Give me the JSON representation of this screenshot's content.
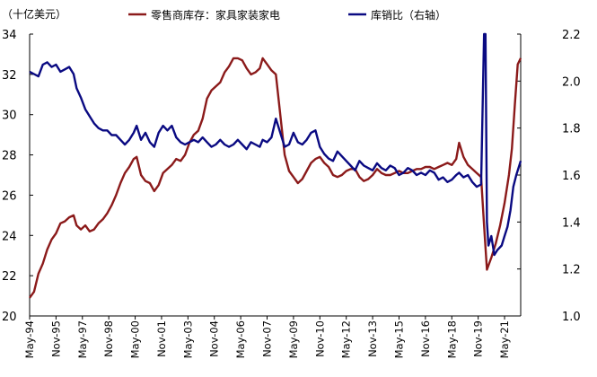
{
  "chart_data": {
    "type": "line",
    "unit_label": "（十亿美元）",
    "left_axis": {
      "ylim": [
        20,
        34
      ],
      "ticks": [
        20,
        22,
        24,
        26,
        28,
        30,
        32,
        34
      ]
    },
    "right_axis": {
      "ylim": [
        1.0,
        2.2
      ],
      "ticks": [
        "1.0",
        "1.2",
        "1.4",
        "1.6",
        "1.8",
        "2.0",
        "2.2"
      ]
    },
    "x_range": [
      "1994-05",
      "2022-04"
    ],
    "x_tick_labels": [
      "May-94",
      "Nov-95",
      "May-97",
      "Nov-98",
      "May-00",
      "Nov-01",
      "May-03",
      "Nov-04",
      "May-06",
      "Nov-07",
      "May-09",
      "Nov-10",
      "May-12",
      "Nov-13",
      "May-15",
      "Nov-16",
      "May-18",
      "Nov-19",
      "May-21"
    ],
    "legend_position": "top",
    "series": [
      {
        "name": "零售商库存：家具家装家电",
        "axis": "left",
        "color": "#8b1a1a",
        "points": [
          [
            "1994-05",
            20.9
          ],
          [
            "1994-08",
            21.2
          ],
          [
            "1994-11",
            22.1
          ],
          [
            "1995-02",
            22.6
          ],
          [
            "1995-05",
            23.3
          ],
          [
            "1995-08",
            23.8
          ],
          [
            "1995-11",
            24.1
          ],
          [
            "1996-02",
            24.6
          ],
          [
            "1996-05",
            24.7
          ],
          [
            "1996-08",
            24.9
          ],
          [
            "1996-11",
            25.0
          ],
          [
            "1997-01",
            24.5
          ],
          [
            "1997-04",
            24.3
          ],
          [
            "1997-07",
            24.5
          ],
          [
            "1997-10",
            24.2
          ],
          [
            "1998-01",
            24.3
          ],
          [
            "1998-04",
            24.6
          ],
          [
            "1998-07",
            24.8
          ],
          [
            "1998-10",
            25.1
          ],
          [
            "1999-01",
            25.5
          ],
          [
            "1999-04",
            26.0
          ],
          [
            "1999-07",
            26.6
          ],
          [
            "1999-10",
            27.1
          ],
          [
            "2000-01",
            27.4
          ],
          [
            "2000-04",
            27.8
          ],
          [
            "2000-06",
            27.9
          ],
          [
            "2000-09",
            27.0
          ],
          [
            "2000-12",
            26.7
          ],
          [
            "2001-03",
            26.6
          ],
          [
            "2001-06",
            26.2
          ],
          [
            "2001-09",
            26.5
          ],
          [
            "2001-12",
            27.1
          ],
          [
            "2002-03",
            27.3
          ],
          [
            "2002-06",
            27.5
          ],
          [
            "2002-09",
            27.8
          ],
          [
            "2002-12",
            27.7
          ],
          [
            "2003-03",
            28.0
          ],
          [
            "2003-06",
            28.6
          ],
          [
            "2003-09",
            29.0
          ],
          [
            "2003-12",
            29.2
          ],
          [
            "2004-03",
            29.8
          ],
          [
            "2004-06",
            30.8
          ],
          [
            "2004-09",
            31.2
          ],
          [
            "2004-12",
            31.4
          ],
          [
            "2005-03",
            31.6
          ],
          [
            "2005-06",
            32.1
          ],
          [
            "2005-09",
            32.4
          ],
          [
            "2005-12",
            32.8
          ],
          [
            "2006-03",
            32.8
          ],
          [
            "2006-06",
            32.7
          ],
          [
            "2006-09",
            32.3
          ],
          [
            "2006-12",
            32.0
          ],
          [
            "2007-03",
            32.1
          ],
          [
            "2007-06",
            32.3
          ],
          [
            "2007-08",
            32.8
          ],
          [
            "2007-11",
            32.5
          ],
          [
            "2008-02",
            32.2
          ],
          [
            "2008-05",
            32.0
          ],
          [
            "2008-08",
            30.0
          ],
          [
            "2008-11",
            28.0
          ],
          [
            "2009-02",
            27.2
          ],
          [
            "2009-05",
            26.9
          ],
          [
            "2009-08",
            26.6
          ],
          [
            "2009-11",
            26.8
          ],
          [
            "2010-02",
            27.2
          ],
          [
            "2010-05",
            27.6
          ],
          [
            "2010-08",
            27.8
          ],
          [
            "2010-11",
            27.9
          ],
          [
            "2011-02",
            27.6
          ],
          [
            "2011-05",
            27.4
          ],
          [
            "2011-08",
            27.0
          ],
          [
            "2011-11",
            26.9
          ],
          [
            "2012-02",
            27.0
          ],
          [
            "2012-05",
            27.2
          ],
          [
            "2012-08",
            27.3
          ],
          [
            "2012-11",
            27.3
          ],
          [
            "2013-02",
            26.9
          ],
          [
            "2013-05",
            26.7
          ],
          [
            "2013-08",
            26.8
          ],
          [
            "2013-11",
            27.0
          ],
          [
            "2014-02",
            27.3
          ],
          [
            "2014-05",
            27.1
          ],
          [
            "2014-08",
            27.0
          ],
          [
            "2014-11",
            27.0
          ],
          [
            "2015-02",
            27.1
          ],
          [
            "2015-05",
            27.2
          ],
          [
            "2015-08",
            27.1
          ],
          [
            "2015-11",
            27.1
          ],
          [
            "2016-02",
            27.2
          ],
          [
            "2016-05",
            27.3
          ],
          [
            "2016-08",
            27.3
          ],
          [
            "2016-11",
            27.4
          ],
          [
            "2017-02",
            27.4
          ],
          [
            "2017-05",
            27.3
          ],
          [
            "2017-08",
            27.4
          ],
          [
            "2017-11",
            27.5
          ],
          [
            "2018-02",
            27.6
          ],
          [
            "2018-05",
            27.5
          ],
          [
            "2018-08",
            27.8
          ],
          [
            "2018-10",
            28.6
          ],
          [
            "2019-01",
            27.9
          ],
          [
            "2019-04",
            27.5
          ],
          [
            "2019-07",
            27.3
          ],
          [
            "2019-10",
            27.1
          ],
          [
            "2020-01",
            26.9
          ],
          [
            "2020-03",
            24.5
          ],
          [
            "2020-05",
            22.3
          ],
          [
            "2020-08",
            22.9
          ],
          [
            "2020-11",
            23.6
          ],
          [
            "2021-02",
            24.5
          ],
          [
            "2021-05",
            25.6
          ],
          [
            "2021-08",
            27.0
          ],
          [
            "2021-10",
            28.3
          ],
          [
            "2021-12",
            30.5
          ],
          [
            "2022-02",
            32.5
          ],
          [
            "2022-04",
            32.8
          ]
        ]
      },
      {
        "name": "库销比（右轴）",
        "axis": "right",
        "color": "#0a0a82",
        "points": [
          [
            "1994-05",
            2.04
          ],
          [
            "1994-08",
            2.03
          ],
          [
            "1994-11",
            2.02
          ],
          [
            "1995-02",
            2.07
          ],
          [
            "1995-05",
            2.08
          ],
          [
            "1995-08",
            2.06
          ],
          [
            "1995-11",
            2.07
          ],
          [
            "1996-02",
            2.04
          ],
          [
            "1996-05",
            2.05
          ],
          [
            "1996-08",
            2.06
          ],
          [
            "1996-11",
            2.03
          ],
          [
            "1997-01",
            1.97
          ],
          [
            "1997-04",
            1.93
          ],
          [
            "1997-07",
            1.88
          ],
          [
            "1997-10",
            1.85
          ],
          [
            "1998-01",
            1.82
          ],
          [
            "1998-04",
            1.8
          ],
          [
            "1998-07",
            1.79
          ],
          [
            "1998-10",
            1.79
          ],
          [
            "1999-01",
            1.77
          ],
          [
            "1999-04",
            1.77
          ],
          [
            "1999-07",
            1.75
          ],
          [
            "1999-10",
            1.73
          ],
          [
            "2000-01",
            1.75
          ],
          [
            "2000-04",
            1.78
          ],
          [
            "2000-06",
            1.81
          ],
          [
            "2000-09",
            1.75
          ],
          [
            "2000-12",
            1.78
          ],
          [
            "2001-03",
            1.74
          ],
          [
            "2001-06",
            1.72
          ],
          [
            "2001-09",
            1.78
          ],
          [
            "2001-12",
            1.81
          ],
          [
            "2002-03",
            1.79
          ],
          [
            "2002-06",
            1.81
          ],
          [
            "2002-09",
            1.76
          ],
          [
            "2002-12",
            1.74
          ],
          [
            "2003-03",
            1.73
          ],
          [
            "2003-06",
            1.74
          ],
          [
            "2003-09",
            1.75
          ],
          [
            "2003-12",
            1.74
          ],
          [
            "2004-03",
            1.76
          ],
          [
            "2004-06",
            1.74
          ],
          [
            "2004-09",
            1.72
          ],
          [
            "2004-12",
            1.73
          ],
          [
            "2005-03",
            1.75
          ],
          [
            "2005-06",
            1.73
          ],
          [
            "2005-09",
            1.72
          ],
          [
            "2005-12",
            1.73
          ],
          [
            "2006-03",
            1.75
          ],
          [
            "2006-06",
            1.73
          ],
          [
            "2006-09",
            1.71
          ],
          [
            "2006-12",
            1.74
          ],
          [
            "2007-03",
            1.73
          ],
          [
            "2007-06",
            1.72
          ],
          [
            "2007-08",
            1.75
          ],
          [
            "2007-11",
            1.74
          ],
          [
            "2008-02",
            1.76
          ],
          [
            "2008-05",
            1.84
          ],
          [
            "2008-08",
            1.78
          ],
          [
            "2008-11",
            1.72
          ],
          [
            "2009-02",
            1.73
          ],
          [
            "2009-05",
            1.78
          ],
          [
            "2009-08",
            1.74
          ],
          [
            "2009-11",
            1.73
          ],
          [
            "2010-02",
            1.75
          ],
          [
            "2010-05",
            1.78
          ],
          [
            "2010-08",
            1.79
          ],
          [
            "2010-11",
            1.72
          ],
          [
            "2011-02",
            1.69
          ],
          [
            "2011-05",
            1.67
          ],
          [
            "2011-08",
            1.66
          ],
          [
            "2011-11",
            1.7
          ],
          [
            "2012-02",
            1.68
          ],
          [
            "2012-05",
            1.66
          ],
          [
            "2012-08",
            1.64
          ],
          [
            "2012-11",
            1.62
          ],
          [
            "2013-02",
            1.66
          ],
          [
            "2013-05",
            1.64
          ],
          [
            "2013-08",
            1.63
          ],
          [
            "2013-11",
            1.62
          ],
          [
            "2014-02",
            1.65
          ],
          [
            "2014-05",
            1.63
          ],
          [
            "2014-08",
            1.62
          ],
          [
            "2014-11",
            1.64
          ],
          [
            "2015-02",
            1.63
          ],
          [
            "2015-05",
            1.6
          ],
          [
            "2015-08",
            1.61
          ],
          [
            "2015-11",
            1.63
          ],
          [
            "2016-02",
            1.62
          ],
          [
            "2016-05",
            1.6
          ],
          [
            "2016-08",
            1.61
          ],
          [
            "2016-11",
            1.6
          ],
          [
            "2017-02",
            1.62
          ],
          [
            "2017-05",
            1.61
          ],
          [
            "2017-08",
            1.58
          ],
          [
            "2017-11",
            1.59
          ],
          [
            "2018-02",
            1.57
          ],
          [
            "2018-05",
            1.58
          ],
          [
            "2018-08",
            1.6
          ],
          [
            "2018-10",
            1.61
          ],
          [
            "2019-01",
            1.59
          ],
          [
            "2019-04",
            1.6
          ],
          [
            "2019-07",
            1.57
          ],
          [
            "2019-10",
            1.55
          ],
          [
            "2020-01",
            1.56
          ],
          [
            "2020-03",
            2.2
          ],
          [
            "2020-04",
            2.2
          ],
          [
            "2020-05",
            1.4
          ],
          [
            "2020-06",
            1.3
          ],
          [
            "2020-08",
            1.34
          ],
          [
            "2020-10",
            1.26
          ],
          [
            "2020-12",
            1.28
          ],
          [
            "2021-03",
            1.3
          ],
          [
            "2021-05",
            1.34
          ],
          [
            "2021-07",
            1.38
          ],
          [
            "2021-09",
            1.45
          ],
          [
            "2021-11",
            1.55
          ],
          [
            "2022-01",
            1.6
          ],
          [
            "2022-03",
            1.64
          ],
          [
            "2022-04",
            1.66
          ]
        ]
      }
    ]
  }
}
